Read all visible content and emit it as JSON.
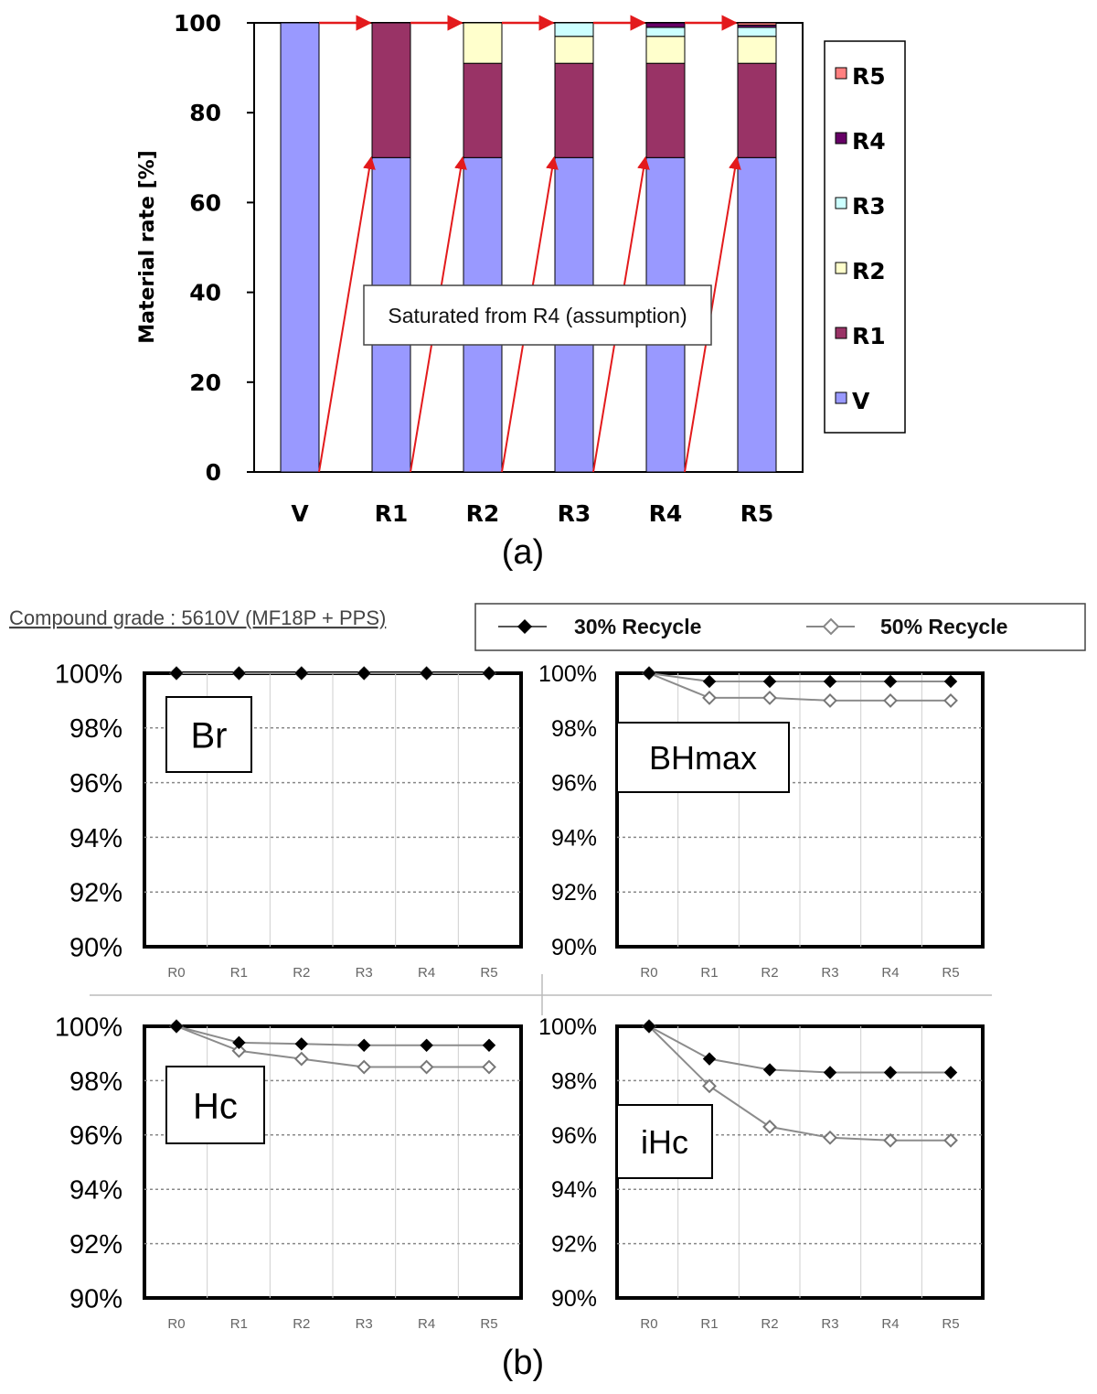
{
  "panel_a_label": "(a)",
  "panel_b_label": "(b)",
  "compound_grade": "Compound grade : 5610V (MF18P + PPS)",
  "colors": {
    "V": "#9999ff",
    "R1": "#993366",
    "R2": "#ffffcc",
    "R3": "#ccffff",
    "R4": "#660066",
    "R5": "#ff8080",
    "arrow": "#e31a1c",
    "filled_marker": "#000000",
    "open_marker": "#ffffff",
    "line": "#8c8c8c"
  },
  "chart_data": [
    {
      "type": "bar",
      "stacked": true,
      "title": "",
      "xlabel": "",
      "ylabel": "Material rate [%]",
      "ylim": [
        0,
        100
      ],
      "yticks": [
        0,
        20,
        40,
        60,
        80,
        100
      ],
      "categories": [
        "V",
        "R1",
        "R2",
        "R3",
        "R4",
        "R5"
      ],
      "legend_position": "right",
      "legend": [
        "R5",
        "R4",
        "R3",
        "R2",
        "R1",
        "V"
      ],
      "series": [
        {
          "name": "V",
          "values": [
            100,
            70,
            70,
            70,
            70,
            70
          ]
        },
        {
          "name": "R1",
          "values": [
            0,
            30,
            21,
            21,
            21,
            21
          ]
        },
        {
          "name": "R2",
          "values": [
            0,
            0,
            9,
            6,
            6,
            6
          ]
        },
        {
          "name": "R3",
          "values": [
            0,
            0,
            0,
            3,
            2,
            2
          ]
        },
        {
          "name": "R4",
          "values": [
            0,
            0,
            0,
            0,
            1,
            0.5
          ]
        },
        {
          "name": "R5",
          "values": [
            0,
            0,
            0,
            0,
            0,
            0.5
          ]
        }
      ],
      "annotation": "Saturated from R4 (assumption)"
    },
    {
      "type": "line",
      "title": "Br",
      "categories": [
        "R0",
        "R1",
        "R2",
        "R3",
        "R4",
        "R5"
      ],
      "ylim": [
        90,
        100
      ],
      "yticks": [
        "90%",
        "92%",
        "94%",
        "96%",
        "98%",
        "100%"
      ],
      "series": [
        {
          "name": "30% Recycle",
          "values": [
            100,
            100,
            100,
            100,
            100,
            100
          ]
        },
        {
          "name": "50% Recycle",
          "values": [
            100,
            100,
            100,
            100,
            100,
            100
          ]
        }
      ]
    },
    {
      "type": "line",
      "title": "BHmax",
      "categories": [
        "R0",
        "R1",
        "R2",
        "R3",
        "R4",
        "R5"
      ],
      "ylim": [
        90,
        100
      ],
      "yticks": [
        "90%",
        "92%",
        "94%",
        "96%",
        "98%",
        "100%"
      ],
      "series": [
        {
          "name": "30% Recycle",
          "values": [
            100,
            99.7,
            99.7,
            99.7,
            99.7,
            99.7
          ]
        },
        {
          "name": "50% Recycle",
          "values": [
            100,
            99.1,
            99.1,
            99.0,
            99.0,
            99.0
          ]
        }
      ]
    },
    {
      "type": "line",
      "title": "Hc",
      "categories": [
        "R0",
        "R1",
        "R2",
        "R3",
        "R4",
        "R5"
      ],
      "ylim": [
        90,
        100
      ],
      "yticks": [
        "90%",
        "92%",
        "94%",
        "96%",
        "98%",
        "100%"
      ],
      "series": [
        {
          "name": "30% Recycle",
          "values": [
            100,
            99.4,
            99.35,
            99.3,
            99.3,
            99.3
          ]
        },
        {
          "name": "50% Recycle",
          "values": [
            100,
            99.1,
            98.8,
            98.5,
            98.5,
            98.5
          ]
        }
      ]
    },
    {
      "type": "line",
      "title": "iHc",
      "categories": [
        "R0",
        "R1",
        "R2",
        "R3",
        "R4",
        "R5"
      ],
      "ylim": [
        90,
        100
      ],
      "yticks": [
        "90%",
        "92%",
        "94%",
        "96%",
        "98%",
        "100%"
      ],
      "series": [
        {
          "name": "30% Recycle",
          "values": [
            100,
            98.8,
            98.4,
            98.3,
            98.3,
            98.3
          ]
        },
        {
          "name": "50% Recycle",
          "values": [
            100,
            97.8,
            96.3,
            95.9,
            95.8,
            95.8
          ]
        }
      ]
    }
  ]
}
